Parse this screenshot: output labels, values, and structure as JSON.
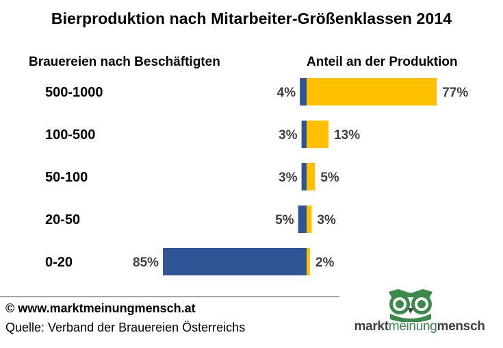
{
  "title": "Bierproduktion nach Mitarbeiter-Größenklassen 2014",
  "headers": {
    "left": "Brauereien nach Beschäftigten",
    "right": "Anteil an der Produktion"
  },
  "chart_data": {
    "type": "bar",
    "categories": [
      "500-1000",
      "100-500",
      "50-100",
      "20-50",
      "0-20"
    ],
    "series": [
      {
        "values": [
          4,
          3,
          3,
          5,
          85
        ],
        "color": "#2f5597"
      },
      {
        "values": [
          77,
          13,
          5,
          3,
          2
        ],
        "color": "#ffc000"
      }
    ],
    "value_suffix": "%"
  },
  "footer": {
    "copyright": "© www.marktmeinungmensch.at",
    "source": "Quelle: Verband der Brauereien Österreichs"
  },
  "logo": {
    "part1": "markt",
    "part2": "meinung",
    "part3": "mensch",
    "icon": "owl-icon",
    "green": "#3a8a4a"
  }
}
